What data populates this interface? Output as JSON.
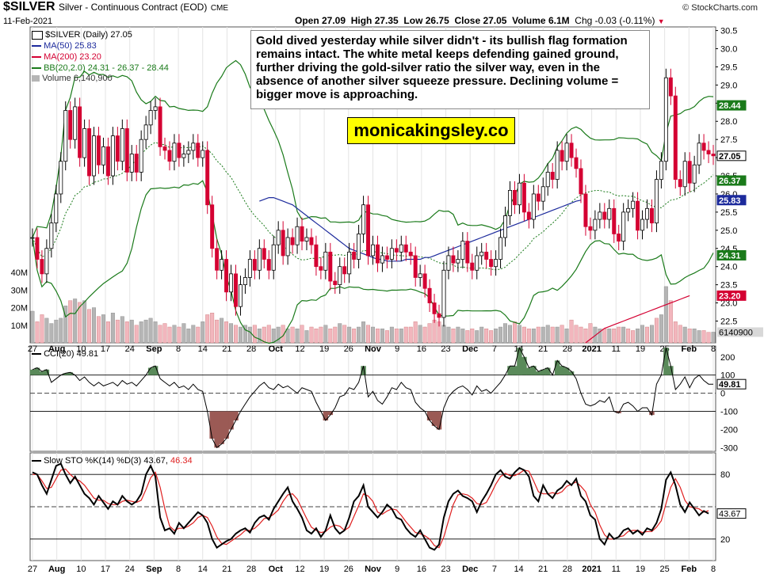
{
  "header": {
    "symbol": "$SILVER",
    "description": "Silver - Continuous Contract (EOD)",
    "exchange": "CME",
    "date": "11-Feb-2021",
    "open": "Open 27.09",
    "high": "High 27.35",
    "low": "Low 26.75",
    "close": "Close 27.05",
    "volume": "Volume 6.1M",
    "change": "Chg -0.03 (-0.11%)",
    "brand": "© StockCharts.com"
  },
  "legend": {
    "price": "$SILVER (Daily) 27.05",
    "ma50": "MA(50) 25.83",
    "ma200": "MA(200) 23.20",
    "bb": "BB(20,2.0) 24.31 - 26.37 - 28.44",
    "volume": "Volume 6,140,900",
    "cci": "CCI(20) 49.81",
    "sto_main": "Slow STO %K(14) %D(3) 43.67,",
    "sto_d": "46.34"
  },
  "annotation": {
    "text": "Gold dived yesterday while silver didn't - its bullish flag formation remains intact. The white metal keeps defending gained ground, further driving the gold-silver ratio the silver way, even in the absence of another silver squeeze pressure. Declining volume = bigger move is approaching.",
    "site": "monicakingsley.co"
  },
  "colors": {
    "up": "#000000",
    "down": "#d40032",
    "ma50": "#1c2a9c",
    "ma200": "#d40032",
    "bb": "#1a7a1a",
    "vol_up": "#b5b5b5",
    "vol_down": "#f2b6bd",
    "cci_fill": "#5a8a5a",
    "cci_neg": "#9b5a55",
    "sto_k": "#000000",
    "sto_d": "#e02020"
  },
  "chart_data": [
    {
      "type": "candlestick",
      "title": "$SILVER (Daily)",
      "ylim": [
        21.9,
        30.6
      ],
      "price_ticks": [
        22.5,
        23.0,
        23.5,
        24.0,
        24.5,
        25.0,
        25.5,
        26.0,
        26.5,
        27.0,
        27.5,
        28.0,
        28.5,
        29.0,
        29.5,
        30.0,
        30.5
      ],
      "x_labels": [
        "27",
        "Aug",
        "10",
        "17",
        "24",
        "Sep",
        "8",
        "14",
        "21",
        "28",
        "Oct",
        "12",
        "19",
        "26",
        "Nov",
        "9",
        "16",
        "23",
        "Dec",
        "7",
        "14",
        "21",
        "28",
        "2021",
        "11",
        "19",
        "25",
        "Feb",
        "8"
      ],
      "bold_labels": [
        "Aug",
        "Sep",
        "Oct",
        "Nov",
        "Dec",
        "2021",
        "Feb"
      ],
      "close": [
        24.8,
        24.2,
        23.8,
        24.5,
        25.2,
        26.0,
        26.9,
        28.3,
        27.5,
        28.4,
        27.0,
        27.8,
        26.5,
        27.6,
        26.8,
        27.3,
        26.5,
        27.6,
        26.9,
        27.8,
        26.6,
        27.1,
        26.6,
        27.5,
        27.9,
        28.3,
        28.4,
        27.3,
        27.2,
        26.9,
        27.4,
        27.0,
        27.1,
        27.2,
        27.4,
        27.0,
        27.2,
        25.7,
        24.5,
        23.9,
        24.2,
        23.3,
        23.8,
        22.9,
        23.5,
        23.7,
        24.2,
        23.9,
        24.5,
        24.2,
        23.9,
        24.6,
        25.0,
        24.3,
        24.8,
        24.6,
        25.1,
        24.7,
        24.8,
        24.6,
        24.0,
        23.9,
        24.4,
        23.6,
        23.5,
        24.0,
        23.8,
        24.4,
        24.2,
        24.9,
        25.7,
        24.3,
        24.6,
        24.1,
        24.3,
        24.2,
        24.5,
        24.4,
        24.6,
        24.4,
        24.3,
        23.7,
        23.8,
        23.4,
        23.0,
        22.7,
        22.6,
        23.9,
        24.3,
        24.1,
        24.2,
        24.7,
        24.1,
        23.9,
        24.3,
        24.4,
        24.2,
        24.0,
        24.2,
        24.8,
        25.4,
        26.1,
        25.7,
        26.3,
        25.5,
        25.3,
        26.0,
        25.8,
        26.2,
        26.6,
        26.4,
        27.2,
        26.9,
        27.4,
        27.0,
        26.7,
        26.0,
        25.1,
        25.0,
        25.3,
        25.5,
        25.3,
        25.6,
        24.9,
        24.7,
        25.5,
        25.6,
        25.8,
        25.0,
        25.3,
        25.6,
        25.2,
        26.4,
        26.9,
        29.2,
        28.7,
        26.4,
        26.2,
        26.9,
        26.3,
        26.8,
        27.4,
        27.2,
        27.1,
        27.05
      ],
      "ma50": [
        null,
        null,
        null,
        null,
        null,
        null,
        null,
        null,
        null,
        null,
        null,
        null,
        null,
        null,
        null,
        null,
        null,
        null,
        null,
        null,
        null,
        null,
        null,
        null,
        null,
        null,
        null,
        null,
        null,
        null,
        null,
        null,
        null,
        null,
        null,
        null,
        null,
        null,
        null,
        null,
        null,
        null,
        null,
        null,
        null,
        null,
        null,
        null,
        25.8,
        25.85,
        25.9,
        25.9,
        25.85,
        25.8,
        25.75,
        25.7,
        25.6,
        25.5,
        25.4,
        25.3,
        25.2,
        25.1,
        25.0,
        24.9,
        24.8,
        24.7,
        24.6,
        24.5,
        24.45,
        24.4,
        24.35,
        24.3,
        24.25,
        24.2,
        24.2,
        24.15,
        24.15,
        24.15,
        24.15,
        24.2,
        24.2,
        24.2,
        24.2,
        24.25,
        24.25,
        24.3,
        24.35,
        24.4,
        24.45,
        24.5,
        24.55,
        24.6,
        24.65,
        24.7,
        24.75,
        24.8,
        24.85,
        24.9,
        24.95,
        25.0,
        25.05,
        25.1,
        25.15,
        25.2,
        25.25,
        25.3,
        25.35,
        25.4,
        25.45,
        25.5,
        25.55,
        25.6,
        25.65,
        25.7,
        25.75,
        25.8,
        25.83
      ],
      "ma200": [
        null,
        null,
        null,
        null,
        null,
        null,
        null,
        null,
        null,
        null,
        null,
        null,
        null,
        null,
        null,
        null,
        null,
        null,
        null,
        null,
        null,
        null,
        null,
        null,
        null,
        null,
        null,
        null,
        null,
        null,
        null,
        null,
        null,
        null,
        null,
        null,
        null,
        null,
        null,
        null,
        null,
        null,
        null,
        null,
        null,
        null,
        null,
        null,
        null,
        null,
        null,
        null,
        null,
        null,
        null,
        null,
        null,
        null,
        null,
        null,
        null,
        null,
        null,
        null,
        null,
        null,
        null,
        null,
        null,
        null,
        null,
        null,
        null,
        null,
        null,
        null,
        null,
        null,
        null,
        null,
        null,
        null,
        null,
        null,
        null,
        null,
        null,
        null,
        null,
        null,
        null,
        null,
        null,
        null,
        null,
        null,
        null,
        null,
        null,
        null,
        null,
        null,
        null,
        null,
        null,
        null,
        null,
        null,
        null,
        null,
        null,
        null,
        null,
        null,
        null,
        null,
        null,
        21.9,
        22.0,
        22.1,
        22.2,
        22.3,
        22.35,
        22.4,
        22.45,
        22.5,
        22.55,
        22.6,
        22.65,
        22.7,
        22.75,
        22.8,
        22.85,
        22.9,
        22.95,
        23.0,
        23.05,
        23.1,
        23.15,
        23.2
      ],
      "bb_upper_value": 28.44,
      "bb_middle_value": 26.37,
      "bb_lower_value": 24.31,
      "ma50_value": 25.83,
      "ma200_value": 23.2,
      "last_close": 27.05
    },
    {
      "type": "bar",
      "title": "Volume",
      "ylim": [
        0,
        45
      ],
      "yticks": [
        "10M",
        "20M",
        "30M",
        "40M"
      ],
      "last_value": "6140900",
      "values_millions": [
        18,
        12,
        16,
        14,
        11,
        13,
        14,
        21,
        24,
        25,
        23,
        24,
        19,
        20,
        15,
        16,
        12,
        17,
        13,
        15,
        12,
        13,
        10,
        12,
        13,
        14,
        12,
        10,
        11,
        9,
        10,
        9,
        11,
        8,
        10,
        9,
        12,
        16,
        17,
        13,
        14,
        12,
        11,
        10,
        9,
        10,
        9,
        10,
        8,
        9,
        10,
        8,
        9,
        10,
        8,
        9,
        8,
        10,
        7,
        9,
        8,
        9,
        10,
        8,
        9,
        11,
        10,
        9,
        8,
        9,
        12,
        10,
        9,
        8,
        8,
        7,
        9,
        8,
        8,
        9,
        9,
        12,
        10,
        9,
        11,
        13,
        12,
        10,
        9,
        8,
        9,
        8,
        7,
        8,
        7,
        9,
        8,
        7,
        8,
        9,
        11,
        10,
        12,
        10,
        9,
        8,
        8,
        9,
        9,
        10,
        9,
        9,
        10,
        8,
        13,
        10,
        9,
        8,
        11,
        9,
        8,
        8,
        8,
        8,
        9,
        9,
        8,
        7,
        8,
        10,
        9,
        10,
        14,
        16,
        32,
        24,
        12,
        10,
        9,
        8,
        8,
        7,
        7,
        6,
        6.1
      ],
      "down_flags": [
        0,
        1,
        1,
        0,
        0,
        0,
        0,
        0,
        1,
        0,
        1,
        0,
        1,
        0,
        1,
        0,
        1,
        0,
        1,
        0,
        1,
        0,
        1,
        0,
        0,
        0,
        0,
        1,
        1,
        1,
        0,
        1,
        0,
        0,
        0,
        1,
        0,
        1,
        1,
        1,
        0,
        1,
        0,
        1,
        0,
        0,
        0,
        1,
        0,
        1,
        1,
        0,
        0,
        1,
        0,
        1,
        0,
        1,
        0,
        1,
        1,
        1,
        0,
        1,
        1,
        0,
        1,
        0,
        1,
        0,
        0,
        1,
        0,
        1,
        0,
        1,
        0,
        1,
        0,
        1,
        1,
        1,
        0,
        1,
        1,
        1,
        1,
        0,
        0,
        1,
        0,
        0,
        1,
        1,
        0,
        0,
        1,
        1,
        0,
        0,
        0,
        0,
        1,
        0,
        1,
        1,
        0,
        1,
        0,
        0,
        1,
        0,
        1,
        0,
        1,
        1,
        1,
        1,
        1,
        0,
        0,
        1,
        0,
        1,
        1,
        0,
        1,
        1,
        0,
        0,
        1,
        0,
        1,
        0,
        0,
        1,
        1,
        1,
        0,
        1,
        0,
        0,
        1,
        1
      ]
    },
    {
      "type": "line",
      "title": "CCI(20)",
      "ylim": [
        -320,
        260
      ],
      "yticks": [
        200,
        100,
        0,
        -100,
        -200,
        -300
      ],
      "last_value": 49.81,
      "values": [
        130,
        140,
        120,
        130,
        60,
        80,
        100,
        110,
        115,
        100,
        70,
        90,
        60,
        40,
        60,
        40,
        50,
        60,
        40,
        70,
        50,
        60,
        40,
        70,
        100,
        140,
        150,
        80,
        60,
        40,
        60,
        30,
        40,
        20,
        50,
        20,
        10,
        -100,
        -250,
        -300,
        -280,
        -250,
        -200,
        -150,
        -100,
        -60,
        -20,
        10,
        40,
        60,
        30,
        20,
        50,
        30,
        40,
        20,
        0,
        30,
        20,
        10,
        -50,
        -100,
        -150,
        -120,
        -80,
        -20,
        -10,
        30,
        20,
        60,
        150,
        -20,
        10,
        -40,
        -60,
        -20,
        30,
        20,
        60,
        30,
        20,
        -50,
        -80,
        -100,
        -150,
        -180,
        -200,
        -80,
        -20,
        10,
        30,
        40,
        20,
        -10,
        40,
        10,
        20,
        0,
        30,
        60,
        100,
        150,
        150,
        250,
        200,
        140,
        150,
        120,
        130,
        140,
        100,
        180,
        150,
        140,
        120,
        80,
        0,
        -60,
        -70,
        -60,
        -40,
        -50,
        -20,
        -100,
        -110,
        -60,
        -50,
        -70,
        -100,
        -80,
        -80,
        -120,
        50,
        100,
        250,
        150,
        20,
        50,
        90,
        30,
        80,
        100,
        70,
        50,
        49.81
      ]
    },
    {
      "type": "line",
      "title": "Slow STO %K(14) %D(3)",
      "ylim": [
        0,
        100
      ],
      "yticks": [
        80,
        20
      ],
      "last_k": 43.67,
      "last_d": 46.34,
      "k_values": [
        82,
        80,
        70,
        62,
        75,
        88,
        90,
        80,
        72,
        78,
        70,
        62,
        58,
        52,
        60,
        54,
        48,
        55,
        52,
        60,
        55,
        52,
        55,
        62,
        80,
        88,
        78,
        40,
        28,
        30,
        25,
        35,
        30,
        35,
        40,
        45,
        42,
        35,
        20,
        12,
        15,
        18,
        20,
        25,
        28,
        30,
        26,
        35,
        40,
        42,
        38,
        48,
        55,
        62,
        68,
        55,
        48,
        40,
        28,
        25,
        30,
        22,
        28,
        42,
        30,
        25,
        28,
        40,
        55,
        60,
        70,
        50,
        45,
        40,
        45,
        52,
        48,
        40,
        38,
        30,
        25,
        22,
        28,
        20,
        12,
        10,
        15,
        40,
        55,
        62,
        65,
        60,
        58,
        55,
        45,
        55,
        62,
        70,
        80,
        84,
        78,
        76,
        82,
        86,
        84,
        78,
        60,
        55,
        70,
        62,
        58,
        65,
        68,
        74,
        70,
        76,
        60,
        55,
        42,
        38,
        20,
        15,
        25,
        20,
        22,
        28,
        30,
        25,
        28,
        24,
        30,
        28,
        35,
        48,
        75,
        82,
        70,
        52,
        45,
        54,
        48,
        42,
        46,
        43.67
      ],
      "d_values": [
        80,
        80,
        74,
        67,
        68,
        76,
        84,
        85,
        80,
        76,
        74,
        70,
        64,
        58,
        56,
        56,
        53,
        52,
        52,
        55,
        56,
        55,
        54,
        56,
        66,
        77,
        82,
        68,
        48,
        32,
        28,
        30,
        30,
        32,
        35,
        40,
        42,
        40,
        32,
        22,
        16,
        15,
        18,
        21,
        24,
        28,
        28,
        30,
        34,
        39,
        40,
        43,
        47,
        55,
        61,
        62,
        57,
        48,
        39,
        31,
        28,
        26,
        27,
        31,
        33,
        32,
        28,
        31,
        41,
        51,
        62,
        60,
        55,
        45,
        43,
        46,
        48,
        47,
        42,
        36,
        31,
        26,
        25,
        23,
        20,
        14,
        12,
        22,
        37,
        52,
        61,
        62,
        61,
        58,
        53,
        52,
        54,
        62,
        71,
        78,
        81,
        79,
        79,
        81,
        84,
        83,
        74,
        64,
        62,
        62,
        63,
        62,
        64,
        69,
        71,
        73,
        69,
        64,
        52,
        45,
        33,
        24,
        20,
        20,
        22,
        23,
        27,
        28,
        28,
        26,
        27,
        27,
        31,
        37,
        53,
        68,
        76,
        68,
        56,
        50,
        49,
        48,
        45,
        46.34
      ]
    }
  ]
}
